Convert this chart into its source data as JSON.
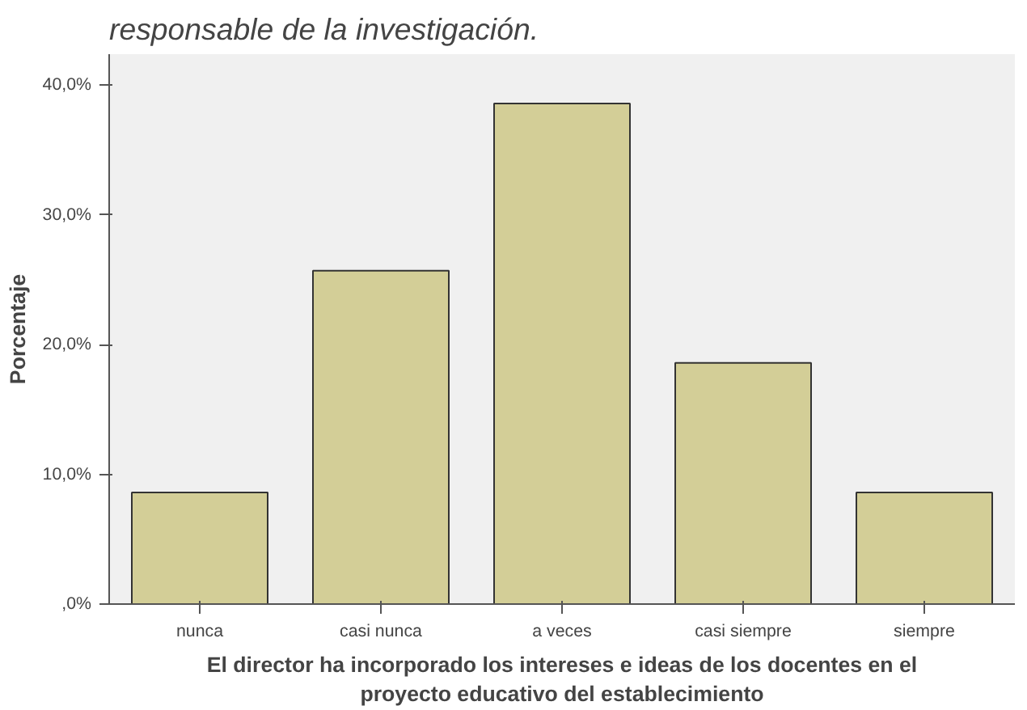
{
  "chart_data": {
    "type": "bar",
    "annotations": [
      "responsable de la investigación."
    ],
    "xlabel": "El director ha incorporado los intereses e ideas de los docentes en el\nproyecto educativo del establecimiento",
    "ylabel": "Porcentaje",
    "categories": [
      "nunca",
      "casi nunca",
      "a veces",
      "casi siempre",
      "siempre"
    ],
    "values": [
      8.6,
      25.7,
      38.6,
      18.6,
      8.6
    ],
    "color": "#d3ce97",
    "ylim": [
      0,
      42.4
    ],
    "yticks": [
      {
        "value": 0,
        "label": ",0%"
      },
      {
        "value": 10,
        "label": "10,0%"
      },
      {
        "value": 20,
        "label": "20,0%"
      },
      {
        "value": 30,
        "label": "30,0%"
      },
      {
        "value": 40,
        "label": "40,0%"
      }
    ],
    "grid": false
  }
}
